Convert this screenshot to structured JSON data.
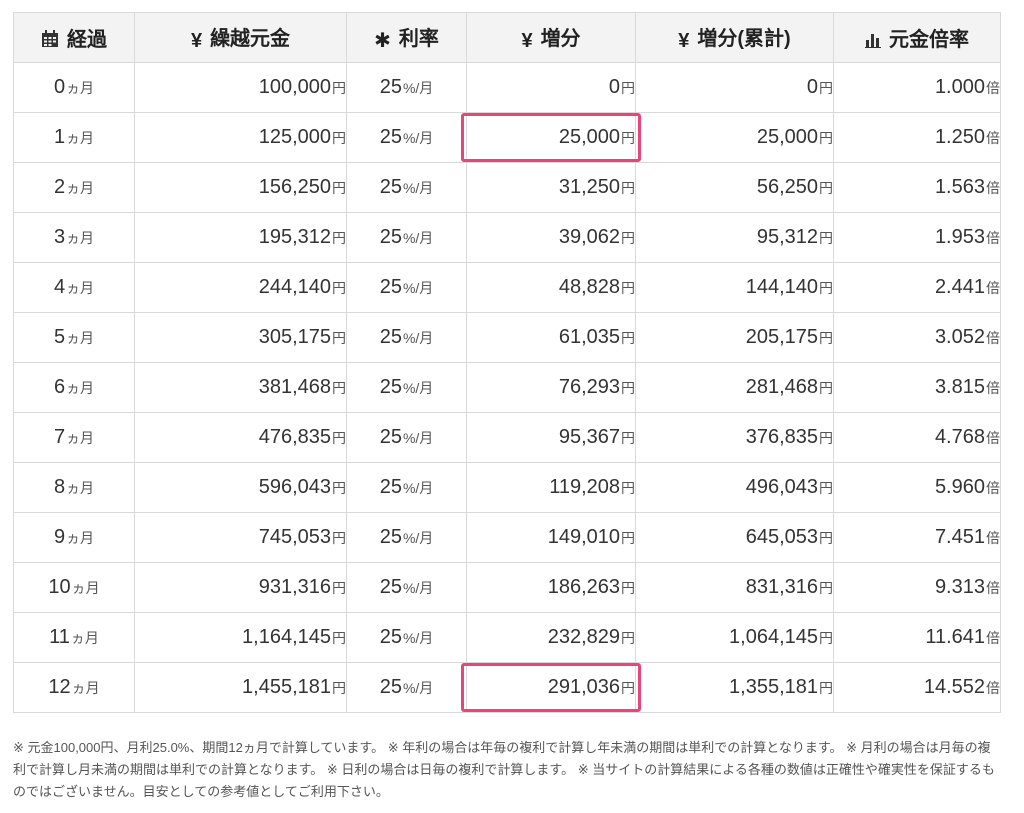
{
  "headers": {
    "elapsed": "経過",
    "principal": "繰越元金",
    "rate": "利率",
    "increase": "増分",
    "cumulative": "増分(累計)",
    "multiplier": "元金倍率"
  },
  "units": {
    "month": "ヵ月",
    "yen": "円",
    "rate": "%/月",
    "times": "倍"
  },
  "rows": [
    {
      "month": "0",
      "principal": "100,000",
      "rate": "25",
      "increase": "0",
      "cumulative": "0",
      "multiplier": "1.000"
    },
    {
      "month": "1",
      "principal": "125,000",
      "rate": "25",
      "increase": "25,000",
      "cumulative": "25,000",
      "multiplier": "1.250"
    },
    {
      "month": "2",
      "principal": "156,250",
      "rate": "25",
      "increase": "31,250",
      "cumulative": "56,250",
      "multiplier": "1.563"
    },
    {
      "month": "3",
      "principal": "195,312",
      "rate": "25",
      "increase": "39,062",
      "cumulative": "95,312",
      "multiplier": "1.953"
    },
    {
      "month": "4",
      "principal": "244,140",
      "rate": "25",
      "increase": "48,828",
      "cumulative": "144,140",
      "multiplier": "2.441"
    },
    {
      "month": "5",
      "principal": "305,175",
      "rate": "25",
      "increase": "61,035",
      "cumulative": "205,175",
      "multiplier": "3.052"
    },
    {
      "month": "6",
      "principal": "381,468",
      "rate": "25",
      "increase": "76,293",
      "cumulative": "281,468",
      "multiplier": "3.815"
    },
    {
      "month": "7",
      "principal": "476,835",
      "rate": "25",
      "increase": "95,367",
      "cumulative": "376,835",
      "multiplier": "4.768"
    },
    {
      "month": "8",
      "principal": "596,043",
      "rate": "25",
      "increase": "119,208",
      "cumulative": "496,043",
      "multiplier": "5.960"
    },
    {
      "month": "9",
      "principal": "745,053",
      "rate": "25",
      "increase": "149,010",
      "cumulative": "645,053",
      "multiplier": "7.451"
    },
    {
      "month": "10",
      "principal": "931,316",
      "rate": "25",
      "increase": "186,263",
      "cumulative": "831,316",
      "multiplier": "9.313"
    },
    {
      "month": "11",
      "principal": "1,164,145",
      "rate": "25",
      "increase": "232,829",
      "cumulative": "1,064,145",
      "multiplier": "11.641"
    },
    {
      "month": "12",
      "principal": "1,455,181",
      "rate": "25",
      "increase": "291,036",
      "cumulative": "1,355,181",
      "multiplier": "14.552"
    }
  ],
  "highlighted_increase_rows": [
    1,
    12
  ],
  "highlight_color": "#e8457a",
  "note": "※ 元金100,000円、月利25.0%、期間12ヵ月で計算しています。 ※ 年利の場合は年毎の複利で計算し年未満の期間は単利での計算となります。 ※ 月利の場合は月毎の複利で計算し月未満の期間は単利での計算となります。 ※ 日利の場合は日毎の複利で計算します。 ※ 当サイトの計算結果による各種の数値は正確性や確実性を保証するものではございません。目安としての参考値としてご利用下さい。",
  "icons": {
    "elapsed": "calendar-icon",
    "principal": "yen-icon",
    "rate": "asterisk-icon",
    "increase": "yen-icon",
    "cumulative": "yen-icon",
    "multiplier": "bar-chart-icon"
  }
}
